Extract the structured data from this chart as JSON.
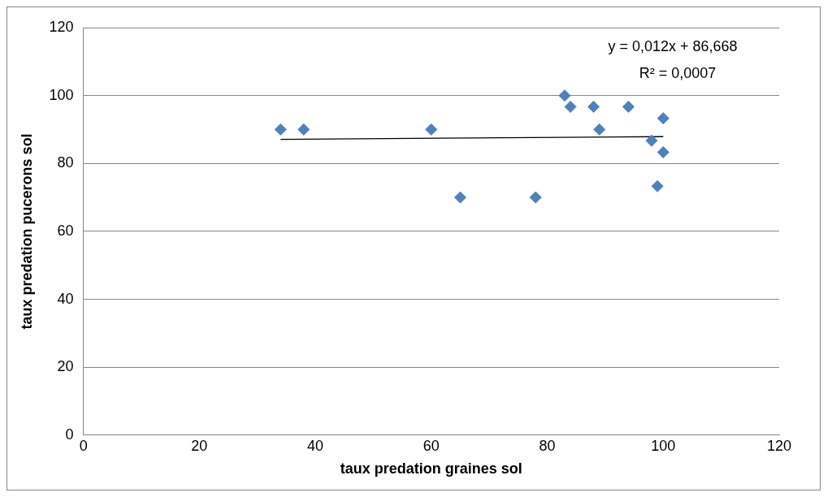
{
  "chart_data": {
    "type": "scatter",
    "xlabel": "taux predation graines sol",
    "ylabel": "taux predation pucerons sol",
    "xlim": [
      0,
      120
    ],
    "xticks": [
      0,
      20,
      40,
      60,
      80,
      100,
      120
    ],
    "ylim": [
      0,
      120
    ],
    "yticks": [
      0,
      20,
      40,
      60,
      80,
      100,
      120
    ],
    "grid": "y",
    "legend": false,
    "marker": "diamond",
    "annotations": [
      "y = 0,012x + 86,668",
      "R² = 0,0007"
    ],
    "series": [
      {
        "color": "#4f81bd",
        "x": [
          34,
          38,
          60,
          65,
          78,
          83,
          84,
          88,
          89,
          94,
          98,
          100,
          100,
          99
        ],
        "values": [
          90,
          90,
          90,
          70,
          70,
          100,
          96.7,
          96.7,
          90,
          96.7,
          86.7,
          93.3,
          83.3,
          73.3
        ]
      },
      {
        "type": "line",
        "color": "#000000",
        "marker": "none",
        "x": [
          34,
          100
        ],
        "values": [
          87.1,
          87.9
        ]
      }
    ]
  }
}
